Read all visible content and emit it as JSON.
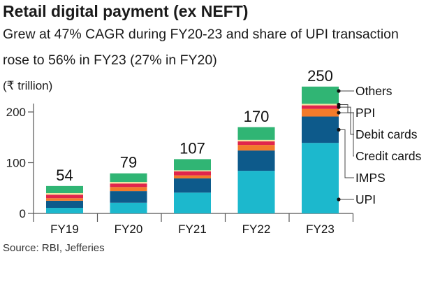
{
  "header": {
    "title": "Retail digital payment (ex NEFT)",
    "subtitle_line1": "Grew at 47% CAGR during FY20-23 and share of UPI transaction",
    "subtitle_line2": "rose to 56% in FY23 (27% in FY20)",
    "unit": "(₹ trillion)"
  },
  "source": "Source: RBI, Jefferies",
  "chart_data": {
    "type": "bar",
    "stacked": true,
    "title": "Retail digital payment (ex NEFT)",
    "ylabel": "(₹ trillion)",
    "ylim": [
      0,
      250
    ],
    "yticks": [
      0,
      100,
      200
    ],
    "grid": false,
    "legend_placement": "right",
    "categories": [
      "FY19",
      "FY20",
      "FY21",
      "FY22",
      "FY23"
    ],
    "totals": [
      54,
      79,
      107,
      170,
      250
    ],
    "series": [
      {
        "name": "UPI",
        "color": "#1cb8cd",
        "values": [
          11,
          21,
          41,
          84,
          139
        ]
      },
      {
        "name": "IMPS",
        "color": "#0d5a8b",
        "values": [
          14,
          23,
          28,
          40,
          52
        ]
      },
      {
        "name": "Credit cards",
        "color": "#f27b2b",
        "values": [
          5,
          8,
          6,
          11,
          15
        ]
      },
      {
        "name": "Debit cards",
        "color": "#e1254b",
        "values": [
          7,
          7,
          8,
          7,
          7
        ]
      },
      {
        "name": "PPI",
        "color": "#f4e6a2",
        "values": [
          3,
          3,
          2,
          3,
          3
        ]
      },
      {
        "name": "Others",
        "color": "#30b574",
        "values": [
          14,
          17,
          22,
          25,
          34
        ]
      }
    ],
    "legend_order": [
      "Others",
      "PPI",
      "Debit cards",
      "Credit cards",
      "IMPS",
      "UPI"
    ]
  }
}
